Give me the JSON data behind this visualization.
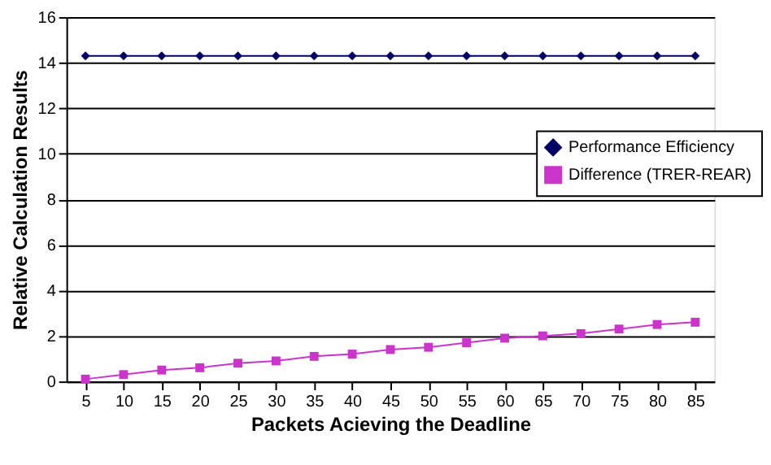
{
  "chart_data": {
    "type": "line",
    "xlabel": "Packets Acieving the Deadline",
    "ylabel": "Relative Calculation Results",
    "categories": [
      "5",
      "10",
      "15",
      "20",
      "25",
      "30",
      "35",
      "40",
      "45",
      "50",
      "55",
      "60",
      "65",
      "70",
      "75",
      "80",
      "85"
    ],
    "series": [
      {
        "name": "Performance Efficiency",
        "color": "#000066",
        "marker": "diamond",
        "values": [
          14.3,
          14.3,
          14.3,
          14.3,
          14.3,
          14.3,
          14.3,
          14.3,
          14.3,
          14.3,
          14.3,
          14.3,
          14.3,
          14.3,
          14.3,
          14.3,
          14.3
        ]
      },
      {
        "name": "Difference (TRER-REAR)",
        "color": "#cc33cc",
        "marker": "square",
        "values": [
          0.1,
          0.3,
          0.5,
          0.6,
          0.8,
          0.9,
          1.1,
          1.2,
          1.4,
          1.5,
          1.7,
          1.9,
          2.0,
          2.1,
          2.3,
          2.5,
          2.6
        ]
      }
    ],
    "ylim": [
      0,
      16
    ],
    "yticks": [
      0,
      2,
      4,
      6,
      8,
      10,
      12,
      14,
      16
    ],
    "grid": "y",
    "legend": "right",
    "line_style": "solid"
  }
}
